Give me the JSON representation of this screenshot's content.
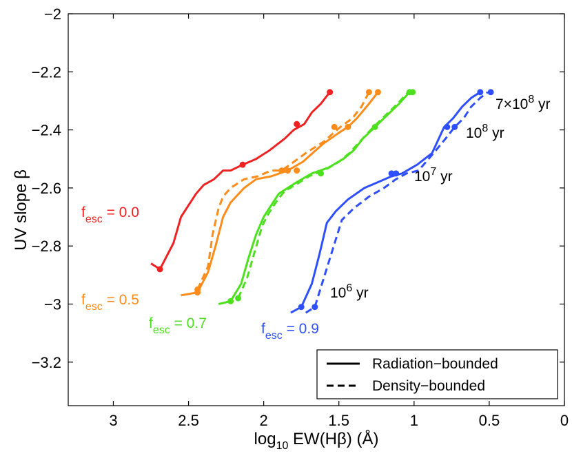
{
  "chart_data": {
    "type": "line",
    "title": "",
    "xlabel": {
      "main": "log",
      "sub": "10",
      "rest": " EW(Hβ) (Å)"
    },
    "ylabel": "UV slope β",
    "xlim": [
      3.3,
      0
    ],
    "ylim": [
      -3.35,
      -2
    ],
    "xticks": [
      3,
      2.5,
      2,
      1.5,
      1,
      0.5,
      0
    ],
    "xtick_labels": [
      "3",
      "2.5",
      "2",
      "1.5",
      "1",
      "0.5",
      "0"
    ],
    "yticks": [
      -2,
      -2.2,
      -2.4,
      -2.6,
      -2.8,
      -3,
      -3.2
    ],
    "ytick_labels": [
      "−2",
      "−2.2",
      "−2.4",
      "−2.6",
      "−2.8",
      "−3",
      "−3.2"
    ],
    "legend": {
      "placement": "bottom-right",
      "entries": [
        {
          "label": "Radiation−bounded",
          "style": "solid"
        },
        {
          "label": "Density−bounded",
          "style": "dashed"
        }
      ]
    },
    "series": [
      {
        "name": "fesc = 0.0 Radiation-bounded",
        "color": "#ee2222",
        "style": "solid",
        "x": [
          2.75,
          2.69,
          2.6,
          2.55,
          2.5,
          2.45,
          2.4,
          2.33,
          2.27,
          2.22,
          2.14,
          2.05,
          1.96,
          1.86,
          1.8,
          1.73,
          1.68,
          1.62,
          1.56
        ],
        "y": [
          -2.86,
          -2.88,
          -2.79,
          -2.7,
          -2.66,
          -2.62,
          -2.59,
          -2.57,
          -2.54,
          -2.54,
          -2.52,
          -2.5,
          -2.47,
          -2.43,
          -2.4,
          -2.38,
          -2.34,
          -2.31,
          -2.27
        ],
        "markers_x": [
          2.69,
          2.14,
          1.78,
          1.56
        ],
        "markers_y": [
          -2.88,
          -2.52,
          -2.38,
          -2.27
        ]
      },
      {
        "name": "fesc = 0.5 Radiation-bounded",
        "color": "#ff8c1a",
        "style": "solid",
        "x": [
          2.55,
          2.44,
          2.37,
          2.32,
          2.27,
          2.22,
          2.13,
          2.05,
          1.95,
          1.84,
          1.74,
          1.61,
          1.5,
          1.44,
          1.38,
          1.3,
          1.24
        ],
        "y": [
          -2.97,
          -2.96,
          -2.89,
          -2.8,
          -2.7,
          -2.65,
          -2.6,
          -2.57,
          -2.56,
          -2.54,
          -2.51,
          -2.45,
          -2.41,
          -2.39,
          -2.36,
          -2.31,
          -2.27
        ],
        "markers_x": [
          2.44,
          1.84,
          1.44,
          1.24
        ],
        "markers_y": [
          -2.96,
          -2.54,
          -2.39,
          -2.27
        ]
      },
      {
        "name": "fesc = 0.5 Density-bounded",
        "color": "#ff8c1a",
        "style": "dashed",
        "x": [
          2.44,
          2.37,
          2.34,
          2.3,
          2.27,
          2.22,
          2.13,
          2.04,
          1.95,
          1.88,
          1.8,
          1.72,
          1.6,
          1.49,
          1.41,
          1.35,
          1.3
        ],
        "y": [
          -2.95,
          -2.87,
          -2.76,
          -2.67,
          -2.63,
          -2.6,
          -2.57,
          -2.56,
          -2.54,
          -2.54,
          -2.51,
          -2.48,
          -2.44,
          -2.39,
          -2.36,
          -2.32,
          -2.27
        ],
        "markers_x": [
          2.44,
          1.88,
          1.78,
          1.53,
          1.3
        ],
        "markers_y": [
          -2.95,
          -2.54,
          -2.54,
          -2.39,
          -2.27
        ]
      },
      {
        "name": "fesc = 0.7 Radiation-bounded",
        "color": "#4de01e",
        "style": "solid",
        "x": [
          2.3,
          2.22,
          2.15,
          2.1,
          2.05,
          2.0,
          1.95,
          1.9,
          1.84,
          1.78,
          1.68,
          1.57,
          1.47,
          1.4,
          1.34,
          1.26,
          1.18,
          1.1,
          1.03
        ],
        "y": [
          -3.0,
          -2.99,
          -2.93,
          -2.84,
          -2.76,
          -2.7,
          -2.66,
          -2.62,
          -2.6,
          -2.58,
          -2.55,
          -2.53,
          -2.5,
          -2.47,
          -2.43,
          -2.39,
          -2.35,
          -2.31,
          -2.27
        ],
        "markers_x": [
          2.22,
          1.62,
          1.26,
          1.03
        ],
        "markers_y": [
          -2.99,
          -2.55,
          -2.39,
          -2.27
        ]
      },
      {
        "name": "fesc = 0.7 Density-bounded",
        "color": "#4de01e",
        "style": "dashed",
        "x": [
          2.17,
          2.11,
          2.06,
          2.01,
          1.97,
          1.92,
          1.86,
          1.79,
          1.7,
          1.6,
          1.5,
          1.43,
          1.36,
          1.27,
          1.19,
          1.11,
          1.04,
          1.01
        ],
        "y": [
          -2.98,
          -2.91,
          -2.82,
          -2.73,
          -2.69,
          -2.65,
          -2.61,
          -2.59,
          -2.56,
          -2.54,
          -2.51,
          -2.48,
          -2.44,
          -2.39,
          -2.35,
          -2.31,
          -2.27,
          -2.27
        ],
        "markers_x": [
          2.17,
          1.01
        ],
        "markers_y": [
          -2.98,
          -2.27
        ]
      },
      {
        "name": "fesc = 0.9 Radiation-bounded",
        "color": "#2e4fff",
        "style": "solid",
        "x": [
          1.82,
          1.75,
          1.68,
          1.63,
          1.58,
          1.52,
          1.44,
          1.33,
          1.24,
          1.15,
          1.08,
          0.98,
          0.88,
          0.8,
          0.74,
          0.68,
          0.62,
          0.56
        ],
        "y": [
          -3.03,
          -3.01,
          -2.93,
          -2.83,
          -2.72,
          -2.68,
          -2.64,
          -2.6,
          -2.58,
          -2.56,
          -2.55,
          -2.52,
          -2.48,
          -2.39,
          -2.36,
          -2.32,
          -2.29,
          -2.27
        ],
        "markers_x": [
          1.75,
          1.15,
          0.78,
          0.56
        ],
        "markers_y": [
          -3.01,
          -2.55,
          -2.39,
          -2.27
        ]
      },
      {
        "name": "fesc = 0.9 Density-bounded",
        "color": "#2e4fff",
        "style": "dashed",
        "x": [
          1.72,
          1.66,
          1.6,
          1.54,
          1.48,
          1.4,
          1.3,
          1.2,
          1.12,
          1.05,
          0.97,
          0.87,
          0.79,
          0.73,
          0.67,
          0.62,
          0.56,
          0.51
        ],
        "y": [
          -3.03,
          -3.01,
          -2.91,
          -2.81,
          -2.71,
          -2.67,
          -2.63,
          -2.6,
          -2.57,
          -2.55,
          -2.54,
          -2.48,
          -2.43,
          -2.39,
          -2.36,
          -2.32,
          -2.29,
          -2.27
        ],
        "markers_x": [
          1.66,
          1.12,
          0.73,
          0.49
        ],
        "markers_y": [
          -3.01,
          -2.55,
          -2.39,
          -2.27
        ]
      }
    ],
    "annotations": [
      {
        "pre": "f",
        "sub": "esc",
        "post": " = 0.0",
        "color": "#ee2222"
      },
      {
        "pre": "f",
        "sub": "esc",
        "post": " = 0.5",
        "color": "#ff8c1a"
      },
      {
        "pre": "f",
        "sub": "esc",
        "post": " = 0.7",
        "color": "#4de01e"
      },
      {
        "pre": "f",
        "sub": "esc",
        "post": " = 0.9",
        "color": "#2e4fff"
      },
      {
        "pre": "7×10",
        "sup": "8",
        "post": " yr",
        "color": "#000000"
      },
      {
        "pre": "10",
        "sup": "8",
        "post": " yr",
        "color": "#000000"
      },
      {
        "pre": "10",
        "sup": "7",
        "post": " yr",
        "color": "#000000"
      },
      {
        "pre": "10",
        "sup": "6",
        "post": " yr",
        "color": "#000000"
      }
    ]
  }
}
